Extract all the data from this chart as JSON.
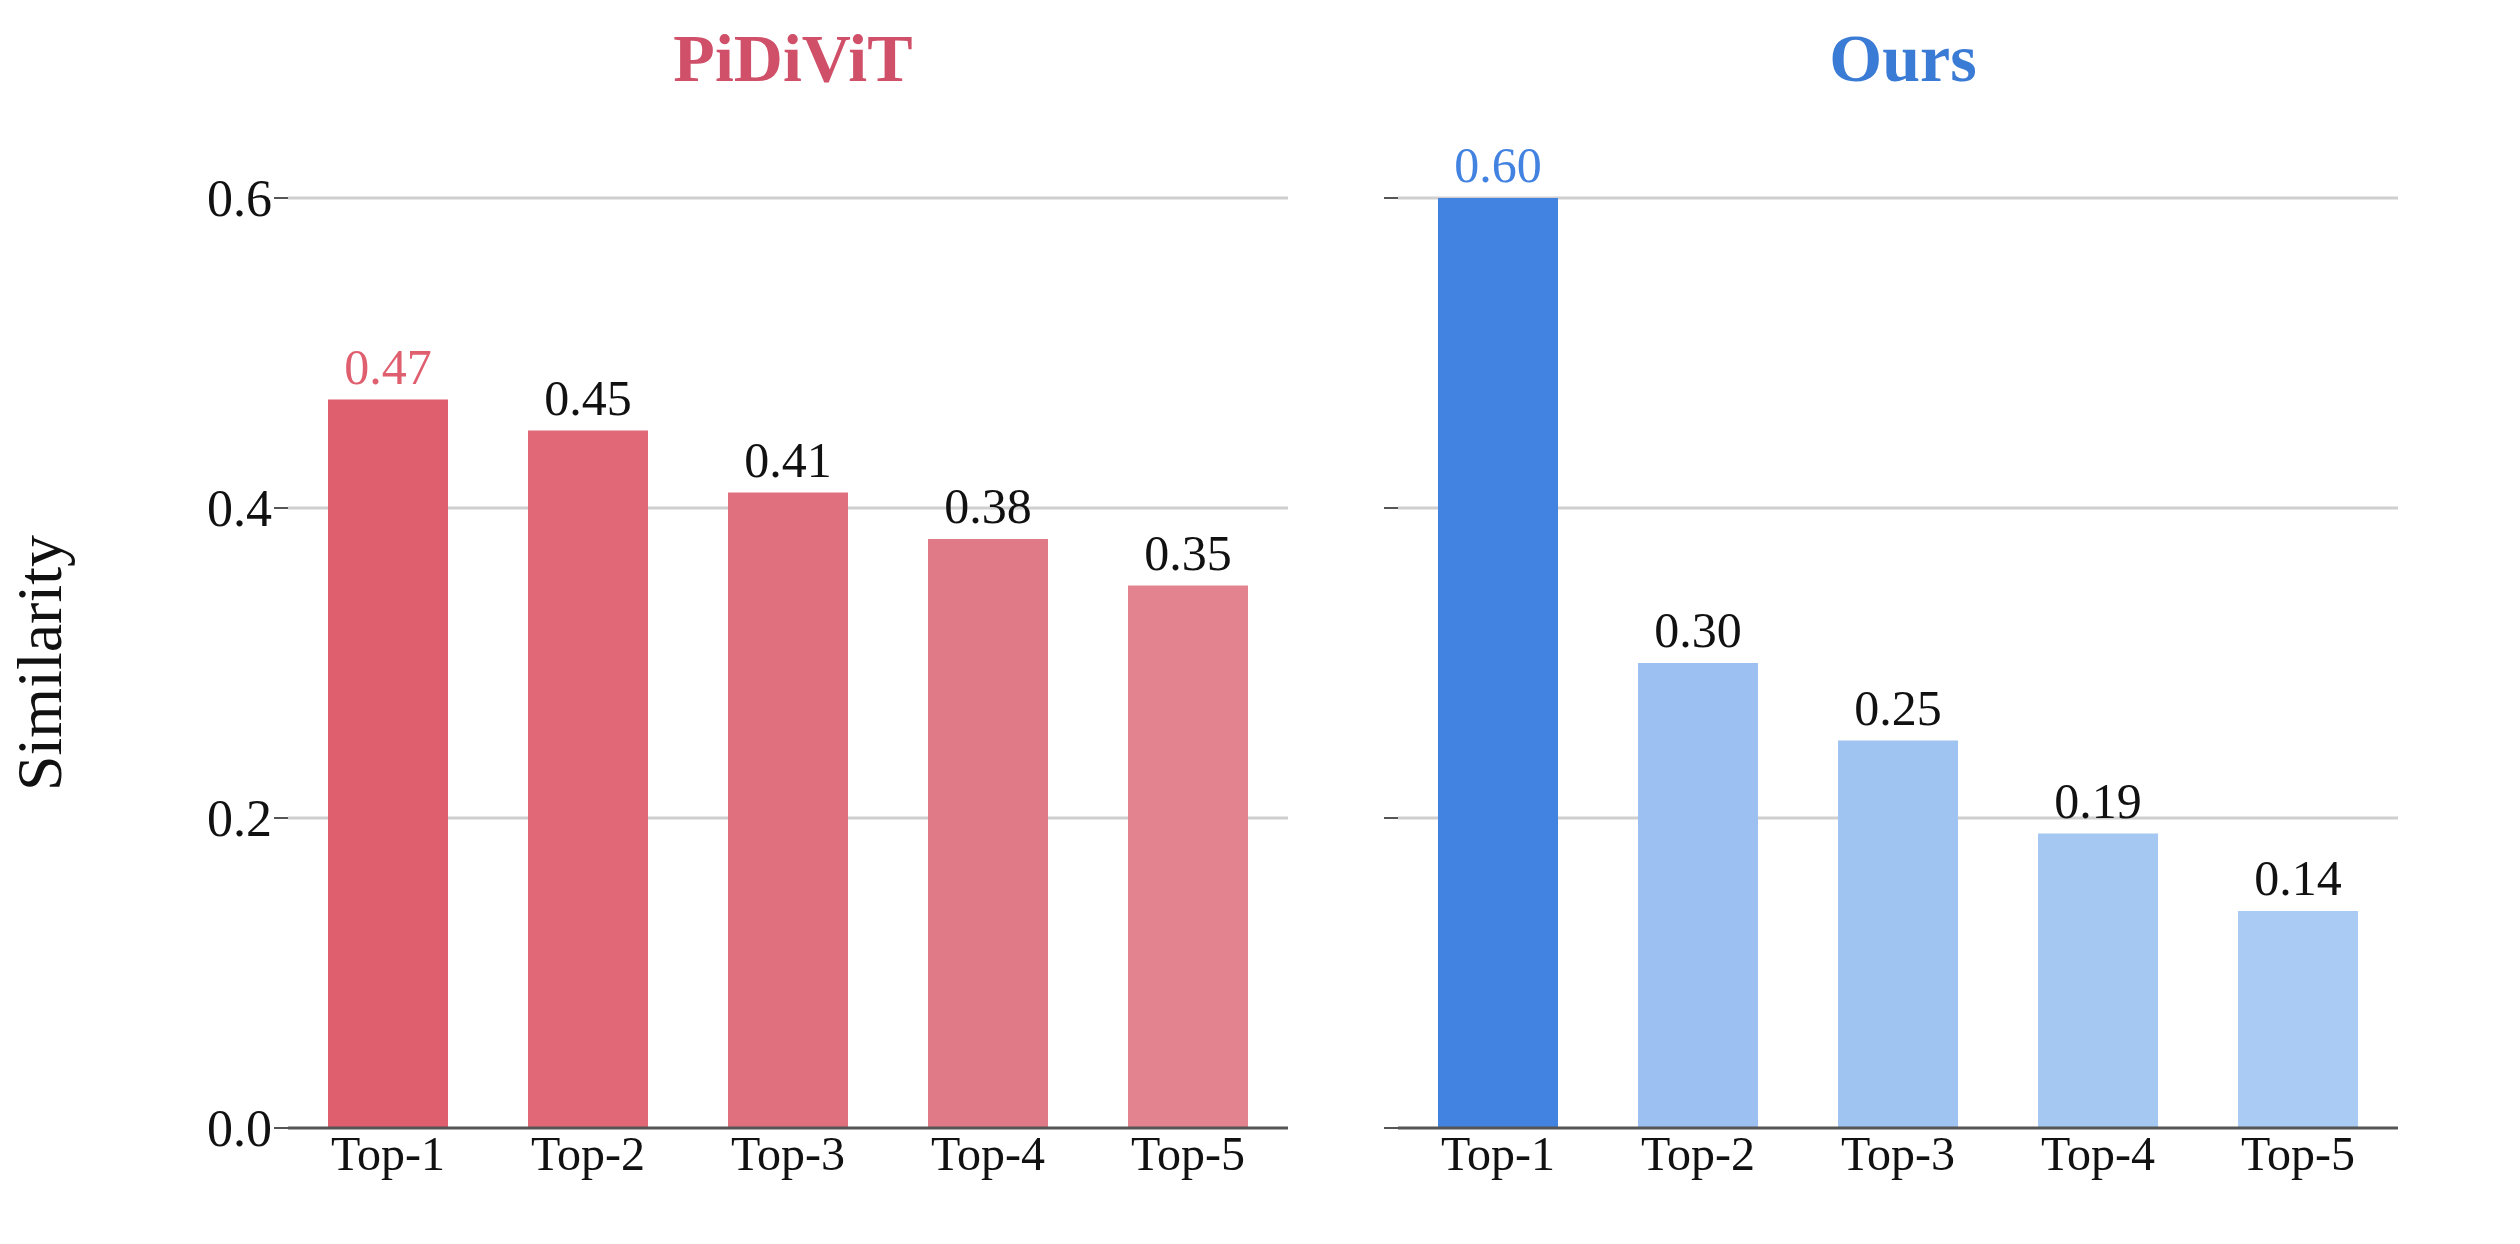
{
  "chart_data": [
    {
      "type": "bar",
      "title": "PiDiViT",
      "ylabel": "Similarity",
      "categories": [
        "Top-1",
        "Top-2",
        "Top-3",
        "Top-4",
        "Top-5"
      ],
      "values": [
        0.47,
        0.45,
        0.41,
        0.38,
        0.35
      ],
      "colors": [
        "#df5f6f",
        "#e06877",
        "#e1707f",
        "#e17a87",
        "#e2838f"
      ],
      "value_labels": [
        "0.47",
        "0.45",
        "0.41",
        "0.38",
        "0.35"
      ],
      "ylim": [
        0,
        0.6
      ],
      "yticks": [
        {
          "value": 0,
          "label": "0.0"
        },
        0.2,
        0.4,
        0.6
      ],
      "grid": "y"
    },
    {
      "type": "bar",
      "title": "Ours",
      "categories": [
        "Top-1",
        "Top-2",
        "Top-3",
        "Top-4",
        "Top-5"
      ],
      "values": [
        0.6,
        0.3,
        0.25,
        0.19,
        0.14
      ],
      "colors": [
        "#4282e0",
        "#9bc0f1",
        "#a0c4f2",
        "#a5c8f3",
        "#aacbf3"
      ],
      "value_labels": [
        "0.60",
        "0.30",
        "0.25",
        "0.19",
        "0.14"
      ],
      "ylim": [
        0,
        0.6
      ],
      "yticks": [
        {
          "value": 0,
          "label": null
        },
        {
          "value": 0.2,
          "label": null
        },
        {
          "value": 0.4,
          "label": null
        },
        {
          "value": 0.6,
          "label": null
        }
      ],
      "grid": "y",
      "tick_labels": "x"
    }
  ]
}
